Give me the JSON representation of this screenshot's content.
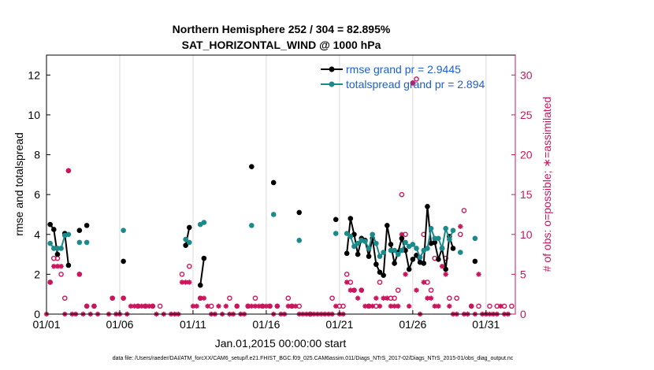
{
  "chart_data": {
    "type": "line",
    "title": "Northern Hemisphere 252 / 304 = 82.895%",
    "subtitle": "SAT_HORIZONTAL_WIND @ 1000 hPa",
    "xlabel": "Jan.01,2015 00:00:00 start",
    "ylabel": "rmse and totalspread",
    "y2label": "# of obs: o=possible; ∗=assimilated",
    "xlim": [
      0,
      32
    ],
    "ylim": [
      0,
      13
    ],
    "y2lim": [
      0,
      32.5
    ],
    "xticks": [
      0,
      5,
      10,
      15,
      20,
      25,
      30
    ],
    "xtick_labels": [
      "01/01",
      "01/06",
      "01/11",
      "01/16",
      "01/21",
      "01/26",
      "01/31"
    ],
    "yticks": [
      0,
      2,
      4,
      6,
      8,
      10,
      12
    ],
    "y2ticks": [
      0,
      5,
      10,
      15,
      20,
      25,
      30
    ],
    "legend": [
      "rmse grand pr = 2.9445",
      "totalspread grand pr = 2.894"
    ],
    "series": [
      {
        "name": "rmse",
        "color": "#000000",
        "points": [
          [
            0.25,
            4.5
          ],
          [
            0.5,
            4.25
          ],
          [
            0.75,
            3.0
          ],
          [
            1.25,
            4.05
          ],
          [
            1.5,
            2.45
          ],
          [
            2.25,
            4.2
          ],
          [
            2.75,
            4.45
          ],
          [
            5.25,
            2.65
          ],
          [
            9.5,
            3.45
          ],
          [
            9.75,
            4.35
          ],
          [
            10.5,
            1.45
          ],
          [
            10.75,
            2.8
          ],
          [
            14.0,
            7.4
          ],
          [
            15.5,
            6.6
          ],
          [
            17.25,
            5.1
          ],
          [
            19.75,
            4.75
          ],
          [
            20.5,
            3.05
          ],
          [
            20.75,
            4.8
          ],
          [
            21.0,
            4.0
          ],
          [
            21.25,
            3.0
          ],
          [
            21.5,
            3.8
          ],
          [
            21.75,
            3.7
          ],
          [
            22.0,
            2.9
          ],
          [
            22.25,
            3.8
          ],
          [
            22.5,
            2.5
          ],
          [
            22.75,
            2.1
          ],
          [
            23.0,
            1.95
          ],
          [
            23.25,
            4.45
          ],
          [
            23.5,
            3.5
          ],
          [
            23.75,
            2.55
          ],
          [
            24.0,
            3.1
          ],
          [
            24.25,
            3.8
          ],
          [
            24.5,
            3.2
          ],
          [
            24.75,
            2.25
          ],
          [
            25.0,
            2.75
          ],
          [
            25.25,
            2.95
          ],
          [
            25.5,
            2.6
          ],
          [
            25.75,
            2.55
          ],
          [
            26.0,
            5.4
          ],
          [
            26.25,
            3.55
          ],
          [
            26.5,
            3.6
          ],
          [
            26.75,
            2.75
          ],
          [
            27.0,
            3.3
          ],
          [
            27.25,
            2.25
          ],
          [
            27.5,
            3.9
          ],
          [
            27.75,
            3.3
          ],
          [
            29.25,
            2.65
          ]
        ]
      },
      {
        "name": "totalspread",
        "color": "#1a8a8a",
        "points": [
          [
            0.25,
            3.55
          ],
          [
            0.5,
            3.3
          ],
          [
            0.75,
            3.3
          ],
          [
            1.0,
            3.3
          ],
          [
            1.25,
            3.95
          ],
          [
            1.5,
            4.0
          ],
          [
            2.25,
            3.6
          ],
          [
            2.75,
            3.6
          ],
          [
            5.25,
            4.2
          ],
          [
            9.5,
            3.75
          ],
          [
            9.75,
            3.6
          ],
          [
            10.5,
            4.5
          ],
          [
            10.75,
            4.6
          ],
          [
            14.0,
            4.45
          ],
          [
            15.5,
            5.0
          ],
          [
            17.25,
            3.7
          ],
          [
            19.75,
            4.05
          ],
          [
            20.5,
            4.05
          ],
          [
            20.75,
            3.9
          ],
          [
            21.0,
            3.4
          ],
          [
            21.25,
            3.55
          ],
          [
            21.5,
            3.7
          ],
          [
            21.75,
            3.65
          ],
          [
            22.0,
            3.3
          ],
          [
            22.25,
            4.0
          ],
          [
            22.5,
            3.55
          ],
          [
            22.75,
            2.9
          ],
          [
            23.0,
            3.1
          ],
          [
            23.5,
            3.2
          ],
          [
            23.75,
            3.2
          ],
          [
            24.0,
            3.0
          ],
          [
            24.25,
            3.2
          ],
          [
            24.5,
            3.6
          ],
          [
            24.75,
            3.4
          ],
          [
            25.0,
            3.5
          ],
          [
            25.25,
            3.3
          ],
          [
            25.5,
            2.85
          ],
          [
            25.75,
            3.2
          ],
          [
            26.0,
            3.3
          ],
          [
            26.25,
            4.3
          ],
          [
            26.5,
            3.8
          ],
          [
            26.75,
            3.8
          ],
          [
            27.0,
            3.3
          ],
          [
            27.25,
            4.3
          ],
          [
            27.5,
            3.75
          ],
          [
            27.75,
            4.2
          ],
          [
            28.25,
            3.1
          ],
          [
            29.25,
            3.8
          ]
        ]
      }
    ],
    "obs_possible": [
      [
        0.25,
        4
      ],
      [
        0.5,
        7
      ],
      [
        0.75,
        7
      ],
      [
        1.0,
        5
      ],
      [
        1.25,
        2
      ],
      [
        1.5,
        18
      ],
      [
        2.25,
        5
      ],
      [
        2.75,
        1
      ],
      [
        3.25,
        1
      ],
      [
        4.5,
        2
      ],
      [
        5.25,
        2
      ],
      [
        6.25,
        1
      ],
      [
        6.75,
        1
      ],
      [
        7.25,
        1
      ],
      [
        7.75,
        1
      ],
      [
        9.25,
        5
      ],
      [
        9.75,
        6
      ],
      [
        10.5,
        2
      ],
      [
        11.25,
        1
      ],
      [
        12.5,
        2
      ],
      [
        13.0,
        1
      ],
      [
        13.75,
        1
      ],
      [
        14.25,
        2
      ],
      [
        14.75,
        1
      ],
      [
        15.25,
        1
      ],
      [
        15.75,
        1
      ],
      [
        16.5,
        2
      ],
      [
        16.75,
        1
      ],
      [
        17.25,
        1
      ],
      [
        18.0,
        0
      ],
      [
        19.5,
        2
      ],
      [
        20.0,
        1
      ],
      [
        20.25,
        1
      ],
      [
        20.5,
        5
      ],
      [
        20.75,
        4
      ],
      [
        21.0,
        3
      ],
      [
        21.5,
        3
      ],
      [
        22.0,
        1
      ],
      [
        22.5,
        1
      ],
      [
        22.75,
        4
      ],
      [
        23.5,
        2
      ],
      [
        23.75,
        2
      ],
      [
        24.0,
        3
      ],
      [
        24.25,
        15
      ],
      [
        24.5,
        10
      ],
      [
        25.0,
        29
      ],
      [
        25.25,
        29.5
      ],
      [
        25.75,
        10
      ],
      [
        26.0,
        4
      ],
      [
        26.25,
        3
      ],
      [
        26.5,
        7
      ],
      [
        27.25,
        7
      ],
      [
        27.5,
        2
      ],
      [
        28.0,
        2
      ],
      [
        28.25,
        10
      ],
      [
        28.5,
        13
      ],
      [
        29.0,
        1
      ],
      [
        29.5,
        1
      ],
      [
        30.25,
        1
      ],
      [
        30.75,
        1
      ],
      [
        31.25,
        1
      ],
      [
        31.75,
        1
      ]
    ],
    "obs_assimilated": [
      [
        0,
        0
      ],
      [
        0.25,
        4
      ],
      [
        0.5,
        6
      ],
      [
        0.75,
        6
      ],
      [
        1.0,
        6
      ],
      [
        1.25,
        0
      ],
      [
        1.5,
        18
      ],
      [
        1.75,
        0
      ],
      [
        2.0,
        0
      ],
      [
        2.25,
        5
      ],
      [
        2.5,
        0
      ],
      [
        2.75,
        1
      ],
      [
        3.0,
        0
      ],
      [
        3.25,
        1
      ],
      [
        3.5,
        0
      ],
      [
        4.25,
        0
      ],
      [
        4.5,
        2
      ],
      [
        4.75,
        0
      ],
      [
        5.0,
        0
      ],
      [
        5.25,
        2
      ],
      [
        5.5,
        0
      ],
      [
        5.75,
        1
      ],
      [
        6.0,
        1
      ],
      [
        6.25,
        1
      ],
      [
        6.5,
        1
      ],
      [
        6.75,
        1
      ],
      [
        7.0,
        1
      ],
      [
        7.25,
        1
      ],
      [
        7.5,
        0
      ],
      [
        8.0,
        0
      ],
      [
        8.5,
        0
      ],
      [
        8.75,
        0
      ],
      [
        9.0,
        0
      ],
      [
        9.25,
        4
      ],
      [
        9.5,
        4
      ],
      [
        9.75,
        4
      ],
      [
        10.0,
        1
      ],
      [
        10.25,
        1
      ],
      [
        10.5,
        2
      ],
      [
        10.75,
        2
      ],
      [
        11.0,
        1
      ],
      [
        11.25,
        0
      ],
      [
        11.5,
        0
      ],
      [
        11.75,
        1
      ],
      [
        12.0,
        0
      ],
      [
        12.25,
        1
      ],
      [
        12.5,
        0
      ],
      [
        12.75,
        0
      ],
      [
        13.0,
        1
      ],
      [
        13.25,
        0
      ],
      [
        13.5,
        0
      ],
      [
        13.75,
        1
      ],
      [
        14.0,
        1
      ],
      [
        14.25,
        1
      ],
      [
        14.5,
        1
      ],
      [
        14.75,
        1
      ],
      [
        15.0,
        1
      ],
      [
        15.25,
        1
      ],
      [
        15.5,
        0
      ],
      [
        15.75,
        1
      ],
      [
        16.0,
        0
      ],
      [
        16.25,
        0
      ],
      [
        16.5,
        1
      ],
      [
        16.75,
        1
      ],
      [
        17.0,
        1
      ],
      [
        17.25,
        0
      ],
      [
        17.5,
        0
      ],
      [
        17.75,
        0
      ],
      [
        18.0,
        0
      ],
      [
        18.25,
        0
      ],
      [
        18.5,
        0
      ],
      [
        18.75,
        0
      ],
      [
        19.0,
        0
      ],
      [
        19.25,
        0
      ],
      [
        19.5,
        0
      ],
      [
        19.75,
        1
      ],
      [
        20.0,
        0
      ],
      [
        20.25,
        0
      ],
      [
        20.5,
        4
      ],
      [
        20.75,
        3
      ],
      [
        21.0,
        3
      ],
      [
        21.25,
        2
      ],
      [
        21.5,
        3
      ],
      [
        21.75,
        1
      ],
      [
        22.0,
        1
      ],
      [
        22.25,
        1
      ],
      [
        22.5,
        2
      ],
      [
        22.75,
        1
      ],
      [
        23.0,
        2
      ],
      [
        23.25,
        2
      ],
      [
        23.5,
        1
      ],
      [
        23.75,
        1
      ],
      [
        24.0,
        1
      ],
      [
        24.25,
        10
      ],
      [
        24.5,
        5
      ],
      [
        24.75,
        1
      ],
      [
        25.0,
        29
      ],
      [
        25.25,
        3
      ],
      [
        25.5,
        0
      ],
      [
        25.75,
        4
      ],
      [
        26.0,
        2
      ],
      [
        26.25,
        2
      ],
      [
        26.5,
        1
      ],
      [
        26.75,
        1
      ],
      [
        27.0,
        6
      ],
      [
        27.25,
        5
      ],
      [
        27.5,
        1
      ],
      [
        27.75,
        0
      ],
      [
        28.0,
        0
      ],
      [
        28.25,
        11
      ],
      [
        28.5,
        0
      ],
      [
        28.75,
        0
      ],
      [
        29.0,
        1
      ],
      [
        29.25,
        0
      ],
      [
        29.5,
        5
      ],
      [
        29.75,
        0
      ],
      [
        30.0,
        0
      ],
      [
        30.25,
        0
      ],
      [
        30.5,
        0
      ],
      [
        30.75,
        0
      ],
      [
        31.0,
        1
      ],
      [
        31.25,
        0
      ],
      [
        31.5,
        0
      ]
    ],
    "footnote": "data file: /Users/raeder/DAI/ATM_forcXX/CAM6_setup/f.e21.FHIST_BGC.f09_025.CAM6assim.011/Diags_NTrS_2017-02/Diags_NTrS_2015-01/obs_diag_output.nc"
  },
  "colors": {
    "rmse": "#000000",
    "spread": "#1a8a8a",
    "obs": "#c8175d",
    "legend_text": "#1a5fd6"
  }
}
